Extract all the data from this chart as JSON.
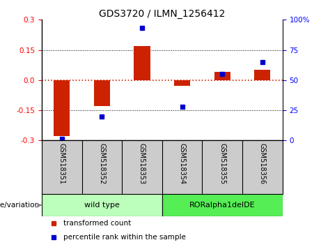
{
  "title": "GDS3720 / ILMN_1256412",
  "samples": [
    "GSM518351",
    "GSM518352",
    "GSM518353",
    "GSM518354",
    "GSM518355",
    "GSM518356"
  ],
  "red_values": [
    -0.28,
    -0.13,
    0.17,
    -0.03,
    0.04,
    0.05
  ],
  "blue_values": [
    1.0,
    20.0,
    93.0,
    28.0,
    55.0,
    65.0
  ],
  "ylim_left": [
    -0.3,
    0.3
  ],
  "ylim_right": [
    0,
    100
  ],
  "yticks_left": [
    -0.3,
    -0.15,
    0.0,
    0.15,
    0.3
  ],
  "yticks_right": [
    0,
    25,
    50,
    75,
    100
  ],
  "bar_color": "#cc2200",
  "dot_color": "#0000cc",
  "groups": [
    {
      "label": "wild type",
      "indices": [
        0,
        1,
        2
      ],
      "color": "#bbffbb"
    },
    {
      "label": "RORalpha1delDE",
      "indices": [
        3,
        4,
        5
      ],
      "color": "#55ee55"
    }
  ],
  "group_label": "genotype/variation",
  "legend_items": [
    {
      "label": "transformed count",
      "color": "#cc2200"
    },
    {
      "label": "percentile rank within the sample",
      "color": "#0000cc"
    }
  ],
  "bg_color": "#ffffff",
  "plot_bg": "#ffffff",
  "tick_area_bg": "#cccccc",
  "hline_color": "#cc2200",
  "grid_color": "#000000"
}
